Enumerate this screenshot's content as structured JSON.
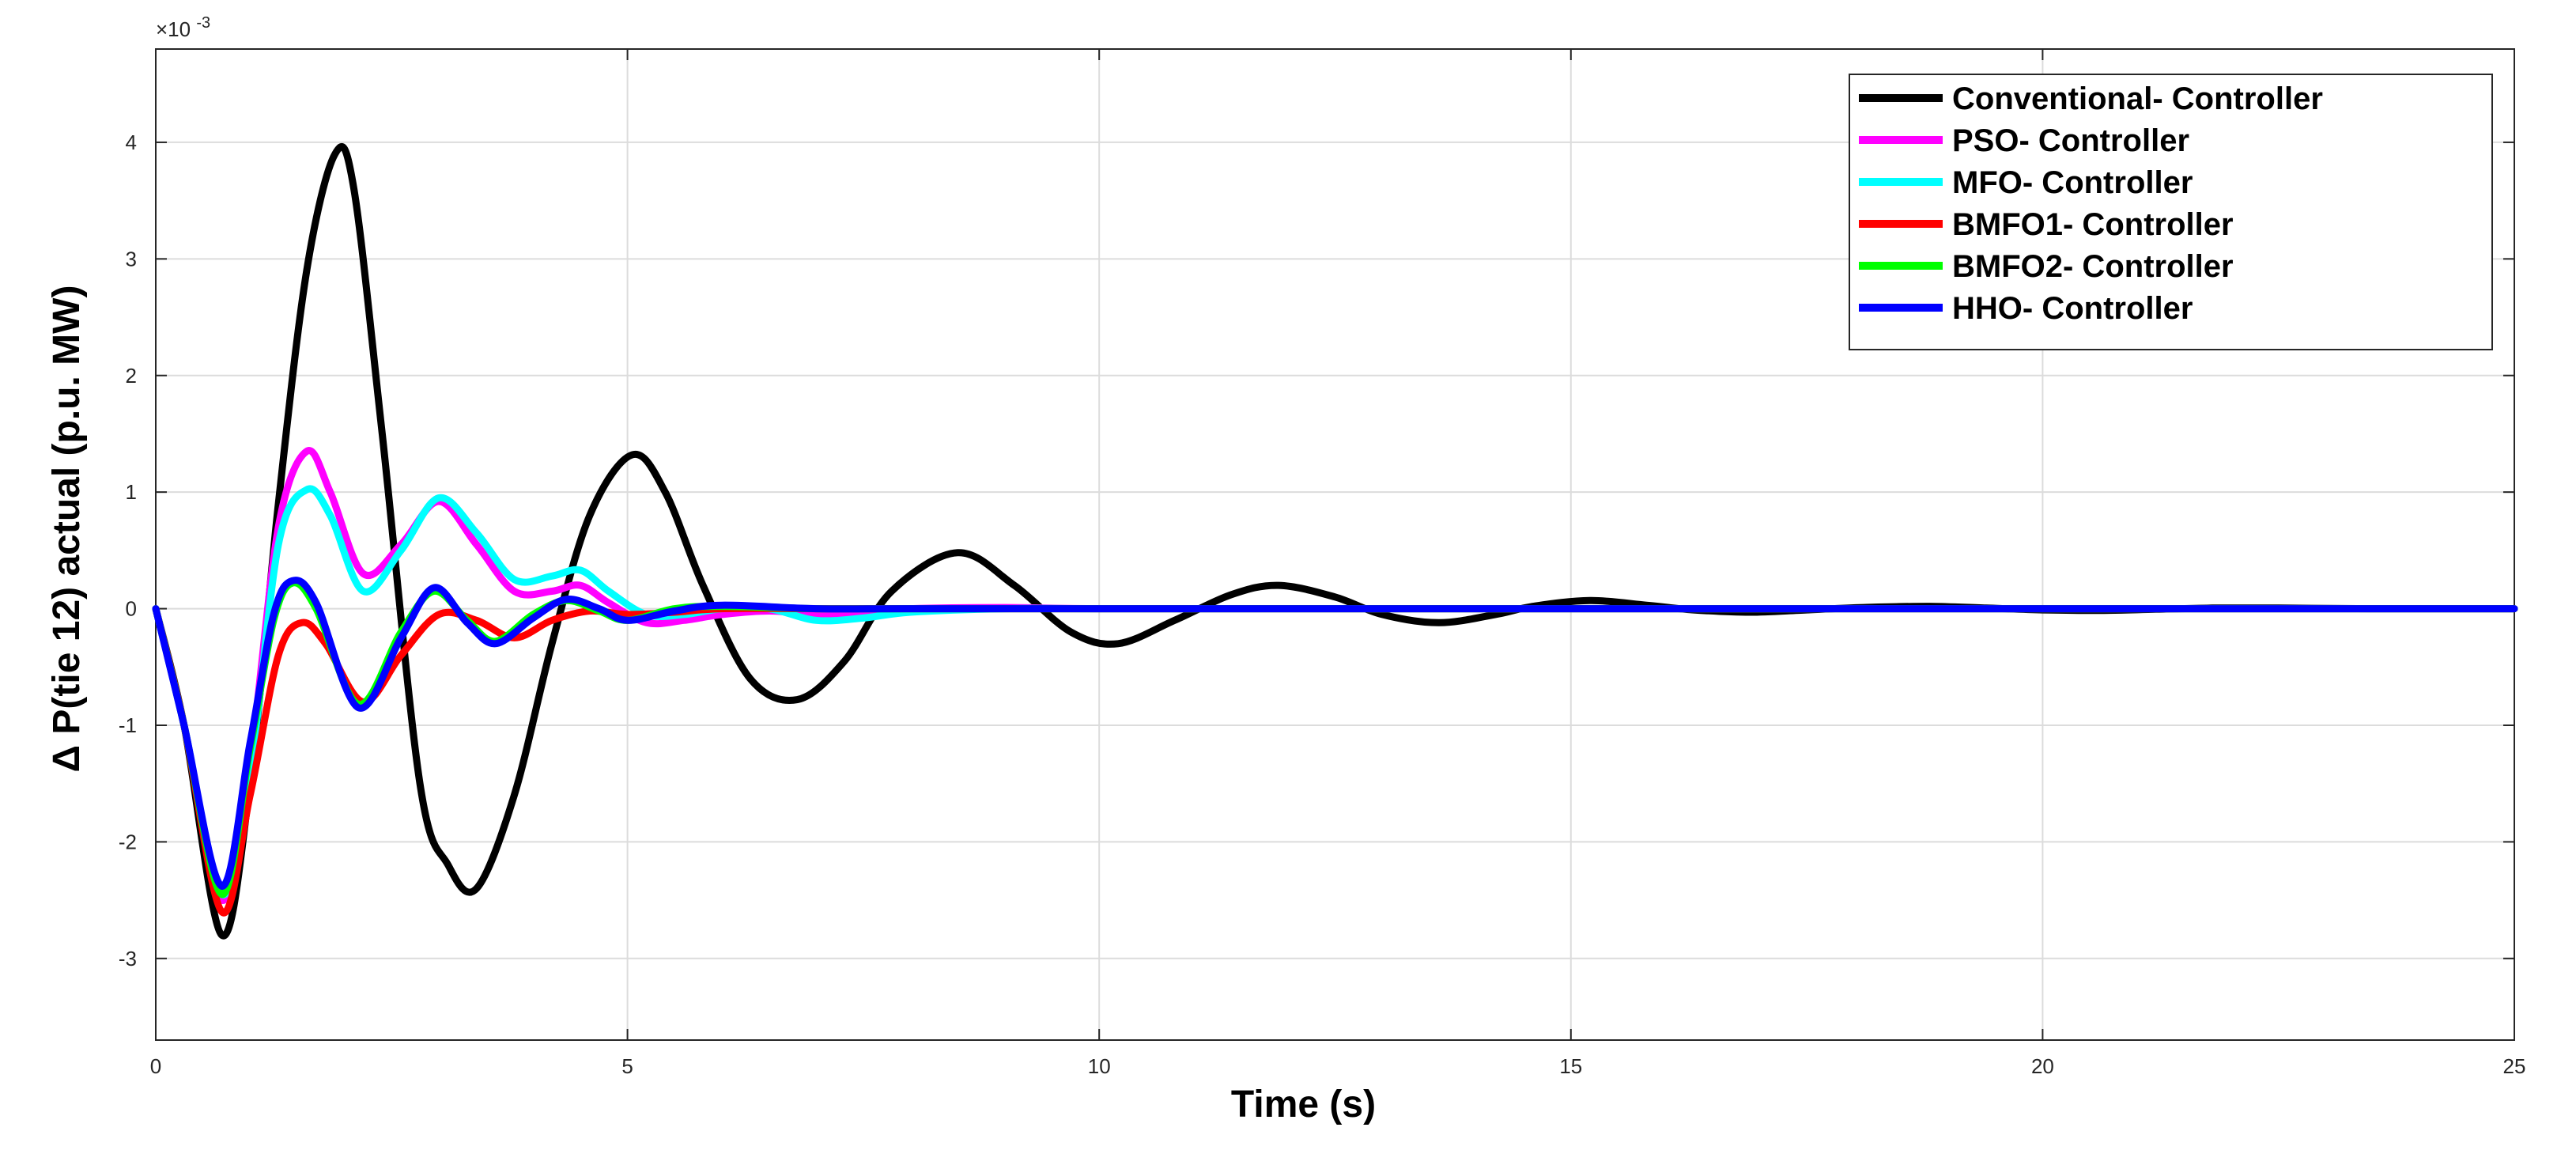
{
  "chart_data": {
    "type": "line",
    "xlabel": "Time (s)",
    "ylabel": "Δ P(tie 12) actual (p.u. MW)",
    "exponent_label": "×10",
    "exponent_power": "-3",
    "xlim": [
      0,
      25
    ],
    "ylim": [
      -3.7,
      4.8
    ],
    "xticks": [
      0,
      5,
      10,
      15,
      20,
      25
    ],
    "xtick_labels": [
      "0",
      "5",
      "10",
      "15",
      "20",
      "25"
    ],
    "yticks": [
      -3,
      -2,
      -1,
      0,
      1,
      2,
      3,
      4
    ],
    "ytick_labels": [
      "-3",
      "-2",
      "-1",
      "0",
      "1",
      "2",
      "3",
      "4"
    ],
    "grid": true,
    "legend_position": "top-right",
    "series": [
      {
        "name": "Conventional- Controller",
        "color": "#000000",
        "x": [
          0,
          0.3,
          0.7,
          1.0,
          1.3,
          1.6,
          1.9,
          2.1,
          2.4,
          2.8,
          3.1,
          3.4,
          3.8,
          4.2,
          4.6,
          5.05,
          5.4,
          5.8,
          6.3,
          6.8,
          7.3,
          7.8,
          8.5,
          9.1,
          9.7,
          10.2,
          10.8,
          11.4,
          11.9,
          12.5,
          13.0,
          13.6,
          14.2,
          14.6,
          15.2,
          15.8,
          16.3,
          16.9,
          17.5,
          18.1,
          18.8,
          19.4,
          20.0,
          20.6,
          21.2,
          21.8,
          22.5,
          23.5,
          25
        ],
        "values": [
          0,
          -1.0,
          -2.8,
          -1.5,
          0.9,
          2.9,
          3.9,
          3.6,
          1.5,
          -1.5,
          -2.2,
          -2.4,
          -1.6,
          -0.3,
          0.8,
          1.32,
          1.0,
          0.2,
          -0.6,
          -0.78,
          -0.45,
          0.15,
          0.48,
          0.2,
          -0.2,
          -0.3,
          -0.1,
          0.12,
          0.2,
          0.1,
          -0.05,
          -0.12,
          -0.05,
          0.02,
          0.07,
          0.03,
          -0.01,
          -0.03,
          -0.01,
          0.01,
          0.02,
          0.005,
          -0.01,
          -0.015,
          -0.005,
          0.005,
          0.005,
          0,
          0
        ]
      },
      {
        "name": "PSO- Controller",
        "color": "#ff00ff",
        "x": [
          0,
          0.3,
          0.7,
          1.0,
          1.3,
          1.6,
          1.85,
          2.2,
          2.6,
          3.0,
          3.4,
          3.8,
          4.2,
          4.5,
          4.8,
          5.2,
          5.6,
          6.0,
          6.5,
          7.0,
          7.5,
          8.0,
          9.0,
          10.0,
          12.0,
          15.0,
          25
        ],
        "values": [
          0,
          -1.0,
          -2.5,
          -1.3,
          0.7,
          1.35,
          1.0,
          0.3,
          0.55,
          0.92,
          0.55,
          0.15,
          0.15,
          0.2,
          0.05,
          -0.12,
          -0.1,
          -0.05,
          -0.02,
          -0.05,
          -0.03,
          0,
          0.01,
          0,
          0,
          0,
          0
        ]
      },
      {
        "name": "MFO- Controller",
        "color": "#00ffff",
        "x": [
          0,
          0.3,
          0.7,
          1.0,
          1.3,
          1.6,
          1.85,
          2.2,
          2.6,
          3.0,
          3.4,
          3.8,
          4.2,
          4.5,
          4.8,
          5.2,
          5.6,
          6.0,
          6.5,
          7.0,
          7.5,
          8.0,
          9.0,
          10.0,
          12.0,
          15.0,
          25
        ],
        "values": [
          0,
          -1.0,
          -2.45,
          -1.4,
          0.55,
          1.02,
          0.8,
          0.15,
          0.5,
          0.95,
          0.65,
          0.25,
          0.28,
          0.33,
          0.15,
          -0.05,
          -0.05,
          0,
          0.0,
          -0.1,
          -0.08,
          -0.03,
          0,
          0,
          0,
          0,
          0
        ]
      },
      {
        "name": "BMFO1- Controller",
        "color": "#ff0000",
        "x": [
          0,
          0.3,
          0.7,
          1.0,
          1.3,
          1.55,
          1.8,
          2.2,
          2.6,
          3.0,
          3.4,
          3.8,
          4.2,
          4.6,
          5.0,
          5.5,
          6.0,
          7.0,
          8.0,
          10.0,
          25
        ],
        "values": [
          0,
          -1.0,
          -2.6,
          -1.6,
          -0.4,
          -0.12,
          -0.3,
          -0.8,
          -0.4,
          -0.05,
          -0.1,
          -0.25,
          -0.1,
          -0.02,
          -0.05,
          -0.03,
          0,
          0,
          0,
          0,
          0
        ]
      },
      {
        "name": "BMFO2- Controller",
        "color": "#00ff00",
        "x": [
          0,
          0.3,
          0.7,
          1.0,
          1.25,
          1.45,
          1.7,
          2.15,
          2.6,
          2.95,
          3.3,
          3.6,
          4.0,
          4.35,
          4.7,
          5.0,
          5.5,
          6.0,
          7.0,
          8.0,
          10.0,
          25
        ],
        "values": [
          0,
          -1.0,
          -2.45,
          -1.2,
          -0.1,
          0.22,
          0.0,
          -0.82,
          -0.2,
          0.15,
          -0.1,
          -0.28,
          -0.05,
          0.07,
          -0.02,
          -0.1,
          0.0,
          0.02,
          0,
          0,
          0,
          0
        ]
      },
      {
        "name": "HHO- Controller",
        "color": "#0000ff",
        "x": [
          0,
          0.3,
          0.7,
          1.0,
          1.25,
          1.45,
          1.7,
          2.15,
          2.6,
          2.95,
          3.3,
          3.6,
          4.0,
          4.35,
          4.7,
          5.0,
          5.5,
          6.0,
          7.0,
          8.0,
          10.0,
          25
        ],
        "values": [
          0,
          -1.0,
          -2.38,
          -1.15,
          -0.05,
          0.24,
          0.05,
          -0.85,
          -0.25,
          0.18,
          -0.12,
          -0.3,
          -0.08,
          0.08,
          0.0,
          -0.1,
          -0.02,
          0.03,
          0,
          0,
          0,
          0
        ]
      }
    ]
  }
}
